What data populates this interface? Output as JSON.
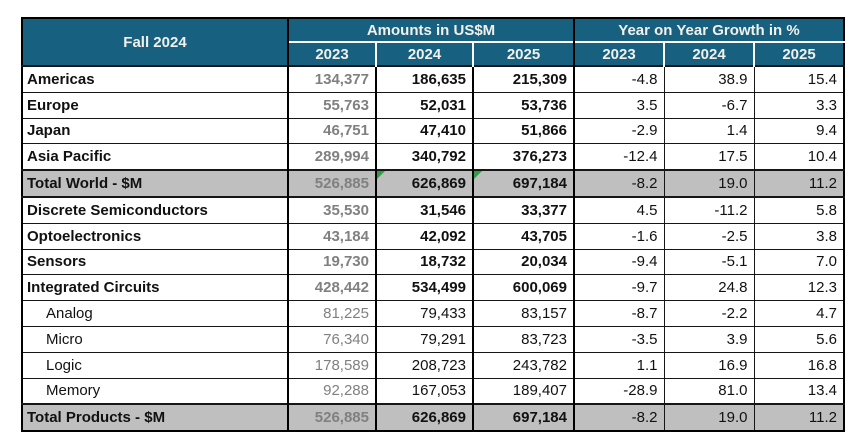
{
  "chart_data": {
    "type": "table",
    "title": "Fall 2024",
    "group_headers": [
      "Amounts in US$M",
      "Year on Year Growth in %"
    ],
    "year_headers": [
      "2023",
      "2024",
      "2025",
      "2023",
      "2024",
      "2025"
    ],
    "rows": [
      {
        "label": "Americas",
        "style": "main",
        "amounts": [
          "134,377",
          "186,635",
          "215,309"
        ],
        "growth": [
          "-4.8",
          "38.9",
          "15.4"
        ]
      },
      {
        "label": "Europe",
        "style": "main",
        "amounts": [
          "55,763",
          "52,031",
          "53,736"
        ],
        "growth": [
          "3.5",
          "-6.7",
          "3.3"
        ]
      },
      {
        "label": "Japan",
        "style": "main",
        "amounts": [
          "46,751",
          "47,410",
          "51,866"
        ],
        "growth": [
          "-2.9",
          "1.4",
          "9.4"
        ]
      },
      {
        "label": "Asia Pacific",
        "style": "main",
        "amounts": [
          "289,994",
          "340,792",
          "376,273"
        ],
        "growth": [
          "-12.4",
          "17.5",
          "10.4"
        ]
      },
      {
        "label": "Total World - $M",
        "style": "total",
        "amounts": [
          "526,885",
          "626,869",
          "697,184"
        ],
        "growth": [
          "-8.2",
          "19.0",
          "11.2"
        ]
      },
      {
        "label": "Discrete Semiconductors",
        "style": "main",
        "amounts": [
          "35,530",
          "31,546",
          "33,377"
        ],
        "growth": [
          "4.5",
          "-11.2",
          "5.8"
        ]
      },
      {
        "label": "Optoelectronics",
        "style": "main",
        "amounts": [
          "43,184",
          "42,092",
          "43,705"
        ],
        "growth": [
          "-1.6",
          "-2.5",
          "3.8"
        ]
      },
      {
        "label": "Sensors",
        "style": "main",
        "amounts": [
          "19,730",
          "18,732",
          "20,034"
        ],
        "growth": [
          "-9.4",
          "-5.1",
          "7.0"
        ]
      },
      {
        "label": "Integrated Circuits",
        "style": "main",
        "amounts": [
          "428,442",
          "534,499",
          "600,069"
        ],
        "growth": [
          "-9.7",
          "24.8",
          "12.3"
        ]
      },
      {
        "label": "Analog",
        "style": "sub",
        "amounts": [
          "81,225",
          "79,433",
          "83,157"
        ],
        "growth": [
          "-8.7",
          "-2.2",
          "4.7"
        ]
      },
      {
        "label": "Micro",
        "style": "sub",
        "amounts": [
          "76,340",
          "79,291",
          "83,723"
        ],
        "growth": [
          "-3.5",
          "3.9",
          "5.6"
        ]
      },
      {
        "label": "Logic",
        "style": "sub",
        "amounts": [
          "178,589",
          "208,723",
          "243,782"
        ],
        "growth": [
          "1.1",
          "16.9",
          "16.8"
        ]
      },
      {
        "label": "Memory",
        "style": "sub",
        "amounts": [
          "92,288",
          "167,053",
          "189,407"
        ],
        "growth": [
          "-28.9",
          "81.0",
          "13.4"
        ]
      },
      {
        "label": "Total Products - $M",
        "style": "total",
        "amounts": [
          "526,885",
          "626,869",
          "697,184"
        ],
        "growth": [
          "-8.2",
          "19.0",
          "11.2"
        ]
      }
    ],
    "flags": {
      "total_world_2024": true,
      "total_world_2025": true
    },
    "layout_hints": {
      "total_rows_shaded": true,
      "amounts_2023_column_muted": true
    }
  },
  "colors": {
    "header_bg": "#17607F",
    "header_text": "#F1F0EB",
    "total_row_bg": "#BFBFBF",
    "muted_number_text": "#808080",
    "flag_green": "#2F9E44",
    "border": "#000000"
  }
}
